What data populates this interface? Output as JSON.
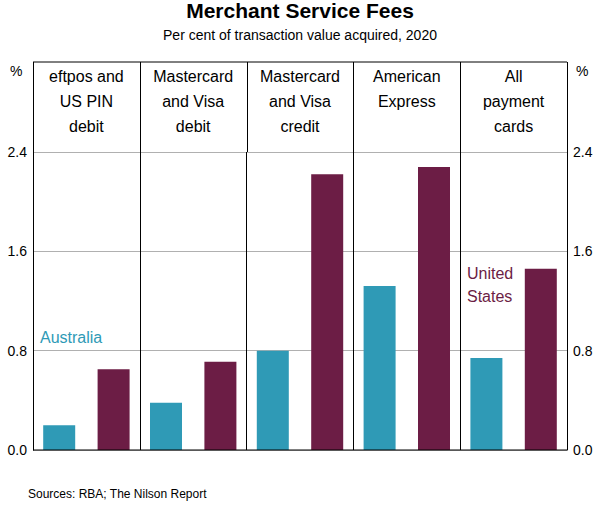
{
  "chart_data": {
    "type": "bar",
    "title": "Merchant Service Fees",
    "subtitle": "Per cent of transaction value acquired, 2020",
    "ylabel": "%",
    "y2label": "%",
    "source": "Sources: RBA; The Nilson Report",
    "categories": [
      "eftpos and\nUS PIN\ndebit",
      "Mastercard\nand Visa\ndebit",
      "Mastercard\nand Visa\ncredit",
      "American\nExpress",
      "All\npayment\ncards"
    ],
    "series": [
      {
        "name": "Australia",
        "color": "#2f9ab6",
        "values": [
          0.2,
          0.38,
          0.8,
          1.32,
          0.74
        ]
      },
      {
        "name": "United States",
        "color": "#6c1d45",
        "values": [
          0.65,
          0.71,
          2.22,
          2.28,
          1.46
        ]
      }
    ],
    "ylim": [
      0,
      2.4
    ],
    "yticks": [
      {
        "value": 0,
        "label": "0.0"
      },
      0.8,
      1.6,
      2.4
    ],
    "y2lim": [
      0,
      2.4
    ],
    "y2ticks": [
      {
        "value": 0,
        "label": "0.0"
      },
      0.8,
      1.6,
      2.4
    ],
    "grid": true
  }
}
